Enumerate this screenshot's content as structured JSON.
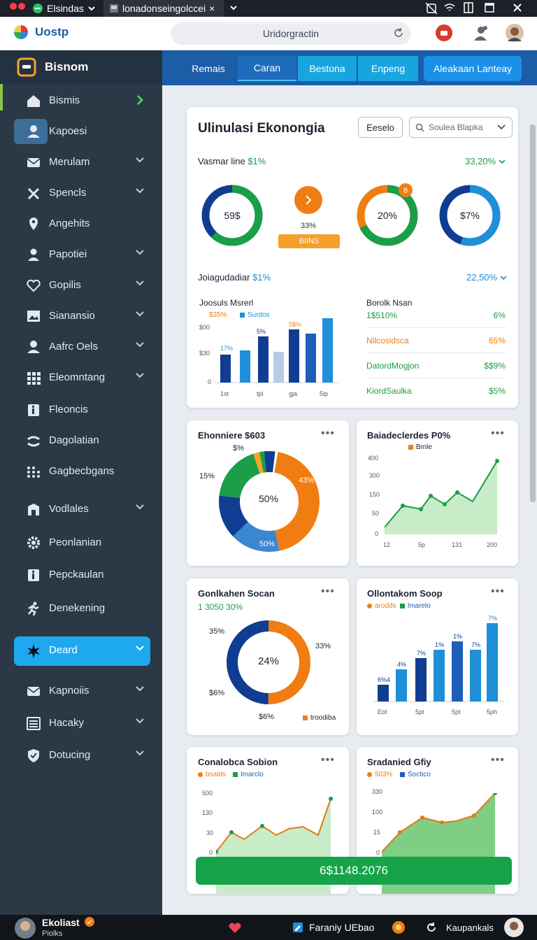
{
  "tabbar": {
    "tab1": "Elsindas",
    "tab2": "lonadonseingolccei",
    "tab2_close": "×"
  },
  "address": {
    "app_name": "Uostp",
    "url": "Uridorgractin"
  },
  "sidebar": {
    "brand": "Bisnom",
    "items": [
      {
        "label": "Bismis",
        "icon": "home-icon"
      },
      {
        "label": "Kapoesi",
        "icon": "user-icon"
      },
      {
        "label": "Merulam",
        "icon": "mail-icon"
      },
      {
        "label": "Spencls",
        "icon": "tools-icon"
      },
      {
        "label": "Angehits",
        "icon": "pin-icon"
      },
      {
        "label": "Papotiei",
        "icon": "person-icon"
      },
      {
        "label": "Gopilis",
        "icon": "heart-icon"
      },
      {
        "label": "Sianansio",
        "icon": "image-icon"
      },
      {
        "label": "Aafrc Oels",
        "icon": "user-icon"
      },
      {
        "label": "Eleomntang",
        "icon": "grid-icon"
      },
      {
        "label": "Fleoncis",
        "icon": "info-icon"
      },
      {
        "label": "Dagolatian",
        "icon": "link-icon"
      },
      {
        "label": "Gagbecbgans",
        "icon": "apps-icon"
      },
      {
        "label": "Vodlales",
        "icon": "door-icon"
      },
      {
        "label": "Peonlanian",
        "icon": "gear-icon"
      },
      {
        "label": "Pepckaulan",
        "icon": "info-icon"
      },
      {
        "label": "Denekening",
        "icon": "run-icon"
      },
      {
        "label": "Deard",
        "icon": "star-icon"
      },
      {
        "label": "Kapnoiis",
        "icon": "mail-icon"
      },
      {
        "label": "Hacaky",
        "icon": "list-icon"
      },
      {
        "label": "Dotucing",
        "icon": "shield-icon"
      }
    ]
  },
  "navtabs": [
    "Remais",
    "Caran",
    "Bestona",
    "Enpeng",
    "Aleakaan Lanteay"
  ],
  "main": {
    "top": {
      "title": "Ulinulasi Ekonongia",
      "btn_label": "Eeselo",
      "search_placeholder": "Soulea Blapka",
      "sec1_label": "Vasmar line",
      "sec1_value": "$1%",
      "sec1_right": "33,20%",
      "donuts": [
        {
          "label": "59$",
          "value": 0.62,
          "color": "#1a9e48",
          "color2": "#0f3d91"
        },
        {
          "label": "33%",
          "value": 0.33,
          "color": "#f07d12"
        },
        {
          "label": "20%",
          "value": 0.68,
          "color": "#1a9e48",
          "color2": "#f07d12",
          "badge": "8"
        },
        {
          "label": "$7%",
          "value": 0.55,
          "color": "#1e8fd8",
          "color2": "#0f3d91"
        }
      ],
      "gauge_btn": "BIINS",
      "sec2_label": "Joiagudadiar",
      "sec2_value": "$1%",
      "sec2_right": "22,50%",
      "mini_chart": {
        "title": "Joosuls Msrerl",
        "legend": [
          {
            "name": "$35%",
            "color": "#f07d12"
          },
          {
            "name": "Surdos",
            "color": "#1e8fd8"
          }
        ],
        "yticks": [
          "$00",
          "$30",
          "0"
        ],
        "xticks": [
          "1st",
          "tpl",
          "gja",
          "5ip"
        ],
        "bar_labels": [
          "17%",
          "5%",
          "5$%"
        ]
      },
      "stats_title": "Borolk Nsan",
      "stats": [
        {
          "label": "1$510%",
          "value": "6%",
          "color": "#1a9e48",
          "vcolor": "#1a9e48"
        },
        {
          "label": "Nilcosidsca",
          "value": "65%",
          "color": "#f07d12",
          "vcolor": "#f07d12"
        },
        {
          "label": "DatordMogjon",
          "value": "$$9%",
          "color": "#1a9e48",
          "vcolor": "#1a9e48"
        },
        {
          "label": "KiordSaulka",
          "value": "$5%",
          "color": "#1a9e48",
          "vcolor": "#1a9e48"
        }
      ]
    },
    "card2": {
      "title": "Ehonniere $603",
      "dots": "•••",
      "center": "50%",
      "lbl_15": "15%",
      "lbl_s": "$%",
      "lbl_43": "43%",
      "lbl_bottom": "50%"
    },
    "card3": {
      "title": "Baiadeclerdes P0%",
      "dots": "•••",
      "legend": "Bmle",
      "yticks": [
        "400",
        "300",
        "150",
        "50",
        "0"
      ],
      "xticks": [
        "12",
        "5p",
        "131",
        "200"
      ]
    },
    "card4": {
      "title": "Gonlkahen Socan",
      "dots": "•••",
      "subtitle": "1 3050 30%",
      "center": "24%",
      "lbl_35": "35%",
      "lbl_33": "33%",
      "lbl_56": "$6%",
      "lbl_b": "$6%",
      "legend": "troodiba"
    },
    "card5": {
      "title": "Ollontakom Soop",
      "dots": "•••",
      "legend": [
        {
          "name": "arodds",
          "color": "#f07d12"
        },
        {
          "name": "lmarelo",
          "color": "#1a9e48"
        }
      ],
      "bar_labels": [
        "6%4",
        "4%",
        "7%",
        "1%",
        "1%",
        "7%",
        "7%"
      ],
      "xticks": [
        "Eot",
        "5pt",
        "5pt",
        "5ph"
      ]
    },
    "card6": {
      "title": "Conalobca Sobion",
      "dots": "•••",
      "legend": [
        {
          "name": "bsalds",
          "color": "#f07d12"
        },
        {
          "name": "Imarclo",
          "color": "#1a9e48"
        }
      ],
      "yticks": [
        "500",
        "130",
        "30",
        "0"
      ]
    },
    "card7": {
      "title": "Sradanied Gfiy",
      "dots": "•••",
      "legend": [
        {
          "name": "503%",
          "color": "#f07d12"
        },
        {
          "name": "Soctico",
          "color": "#1e5db8"
        }
      ],
      "yticks": [
        "330",
        "100",
        "15",
        "0"
      ]
    },
    "total_btn": "6$1148.2076"
  },
  "status": {
    "user": "Ekoliast",
    "user_sub": "Piolks",
    "center": "Faraniy UEbao",
    "right": "Kaupankals"
  }
}
